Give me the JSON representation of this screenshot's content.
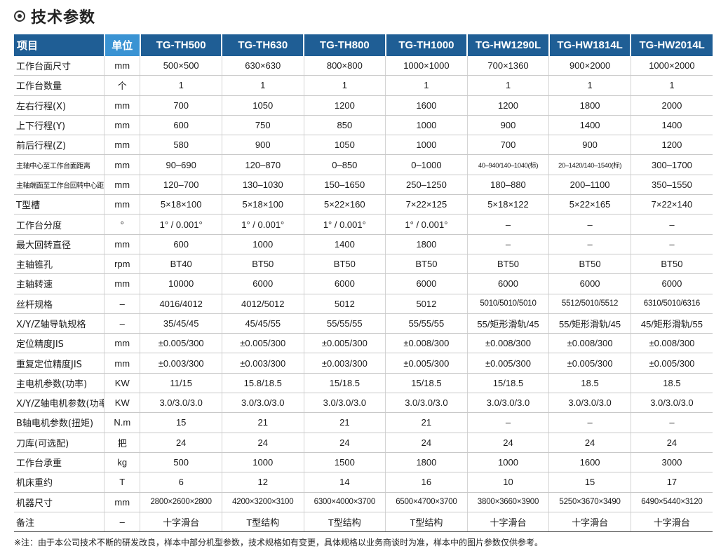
{
  "title": "技术参数",
  "header": [
    "项目",
    "单位",
    "TG-TH500",
    "TG-TH630",
    "TG-TH800",
    "TG-TH1000",
    "TG-HW1290L",
    "TG-HW1814L",
    "TG-HW2014L"
  ],
  "rows": [
    [
      "工作台面尺寸",
      "mm",
      "500×500",
      "630×630",
      "800×800",
      "1000×1000",
      "700×1360",
      "900×2000",
      "1000×2000"
    ],
    [
      "工作台数量",
      "个",
      "1",
      "1",
      "1",
      "1",
      "1",
      "1",
      "1"
    ],
    [
      "左右行程(X)",
      "mm",
      "700",
      "1050",
      "1200",
      "1600",
      "1200",
      "1800",
      "2000"
    ],
    [
      "上下行程(Y)",
      "mm",
      "600",
      "750",
      "850",
      "1000",
      "900",
      "1400",
      "1400"
    ],
    [
      "前后行程(Z)",
      "mm",
      "580",
      "900",
      "1050",
      "1000",
      "700",
      "900",
      "1200"
    ],
    [
      "主轴中心至工作台面距离",
      "mm",
      "90–690",
      "120–870",
      "0–850",
      "0–1000",
      "40–940/140–1040(标)",
      "20–1420/140–1540(标)",
      "300–1700"
    ],
    [
      "主轴端面至工作台回转中心距离",
      "mm",
      "120–700",
      "130–1030",
      "150–1650",
      "250–1250",
      "180–880",
      "200–1100",
      "350–1550"
    ],
    [
      "T型槽",
      "mm",
      "5×18×100",
      "5×18×100",
      "5×22×160",
      "7×22×125",
      "5×18×122",
      "5×22×165",
      "7×22×140"
    ],
    [
      "工作台分度",
      "°",
      "1° / 0.001°",
      "1° / 0.001°",
      "1° / 0.001°",
      "1° / 0.001°",
      "–",
      "–",
      "–"
    ],
    [
      "最大回转直径",
      "mm",
      "600",
      "1000",
      "1400",
      "1800",
      "–",
      "–",
      "–"
    ],
    [
      "主轴锥孔",
      "rpm",
      "BT40",
      "BT50",
      "BT50",
      "BT50",
      "BT50",
      "BT50",
      "BT50"
    ],
    [
      "主轴转速",
      "mm",
      "10000",
      "6000",
      "6000",
      "6000",
      "6000",
      "6000",
      "6000"
    ],
    [
      "丝杆规格",
      "–",
      "4016/4012",
      "4012/5012",
      "5012",
      "5012",
      "5010/5010/5010",
      "5512/5010/5512",
      "6310/5010/6316"
    ],
    [
      "X/Y/Z轴导轨规格",
      "–",
      "35/45/45",
      "45/45/55",
      "55/55/55",
      "55/55/55",
      "55/矩形滑轨/45",
      "55/矩形滑轨/45",
      "45/矩形滑轨/55"
    ],
    [
      "定位精度JIS",
      "mm",
      "±0.005/300",
      "±0.005/300",
      "±0.005/300",
      "±0.008/300",
      "±0.008/300",
      "±0.008/300",
      "±0.008/300"
    ],
    [
      "重复定位精度JIS",
      "mm",
      "±0.003/300",
      "±0.003/300",
      "±0.003/300",
      "±0.005/300",
      "±0.005/300",
      "±0.005/300",
      "±0.005/300"
    ],
    [
      "主电机参数(功率)",
      "KW",
      "11/15",
      "15.8/18.5",
      "15/18.5",
      "15/18.5",
      "15/18.5",
      "18.5",
      "18.5"
    ],
    [
      "X/Y/Z轴电机参数(功率)",
      "KW",
      "3.0/3.0/3.0",
      "3.0/3.0/3.0",
      "3.0/3.0/3.0",
      "3.0/3.0/3.0",
      "3.0/3.0/3.0",
      "3.0/3.0/3.0",
      "3.0/3.0/3.0"
    ],
    [
      "B轴电机参数(扭矩)",
      "N.m",
      "15",
      "21",
      "21",
      "21",
      "–",
      "–",
      "–"
    ],
    [
      "刀库(可选配)",
      "把",
      "24",
      "24",
      "24",
      "24",
      "24",
      "24",
      "24"
    ],
    [
      "工作台承重",
      "kg",
      "500",
      "1000",
      "1500",
      "1800",
      "1000",
      "1600",
      "3000"
    ],
    [
      "机床重约",
      "T",
      "6",
      "12",
      "14",
      "16",
      "10",
      "15",
      "17"
    ],
    [
      "机器尺寸",
      "mm",
      "2800×2600×2800",
      "4200×3200×3100",
      "6300×4000×3700",
      "6500×4700×3700",
      "3800×3660×3900",
      "5250×3670×3490",
      "6490×5440×3120"
    ],
    [
      "备注",
      "–",
      "十字滑台",
      "T型结构",
      "T型结构",
      "T型结构",
      "十字滑台",
      "十字滑台",
      "十字滑台"
    ]
  ],
  "note": "※注：由于本公司技术不断的研发改良，样本中部分机型参数，技术规格如有变更，具体规格以业务商谈时为准，样本中的图片参数仅供参考。",
  "colors": {
    "header_bg": "#1f5e95",
    "unit_header_bg": "#3a93d3"
  }
}
